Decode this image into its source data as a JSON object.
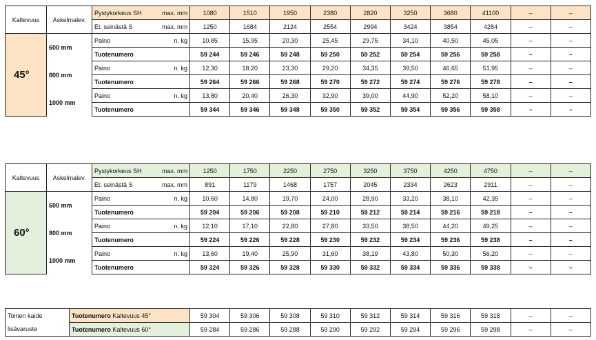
{
  "colors": {
    "orange": "#fce3c6",
    "green": "#e3f0dc"
  },
  "headers": {
    "slope": "Kaltevuus",
    "step_width": "Askelmalev.",
    "height": "Pystykorkeus SH",
    "distance": "Et. seinästä S",
    "max_unit": "max. mm",
    "weight": "Paino",
    "weight_unit": "n. kg",
    "product_number": "Tuotenumero"
  },
  "tables": [
    {
      "angle": "45°",
      "color": "orange",
      "height_values": [
        "1080",
        "1510",
        "1950",
        "2380",
        "2820",
        "3250",
        "3680",
        "41100",
        "–",
        "–"
      ],
      "distance_values": [
        "1250",
        "1684",
        "2124",
        "2554",
        "2994",
        "3424",
        "3854",
        "4284",
        "–",
        "–"
      ],
      "steps": [
        {
          "width": "600 mm",
          "weights": [
            "10,85",
            "15,95",
            "20,30",
            "25,45",
            "29,75",
            "34,10",
            "40,50",
            "45,05",
            "–",
            "–"
          ],
          "products": [
            "59 244",
            "59 246",
            "59 248",
            "59 250",
            "59 252",
            "59 254",
            "59 256",
            "59 258",
            "–",
            "–"
          ]
        },
        {
          "width": "800 mm",
          "weights": [
            "12,30",
            "18,20",
            "23,30",
            "29,20",
            "34,35",
            "39,50",
            "46,65",
            "51,95",
            "–",
            "–"
          ],
          "products": [
            "59 264",
            "59 266",
            "59 268",
            "59 270",
            "59 272",
            "59 274",
            "59 276",
            "59 278",
            "–",
            "–"
          ]
        },
        {
          "width": "1000 mm",
          "weights": [
            "13,80",
            "20,40",
            "26,30",
            "32,90",
            "39,00",
            "44,90",
            "52,20",
            "58,10",
            "–",
            "–"
          ],
          "products": [
            "59 344",
            "59 346",
            "59 348",
            "59 350",
            "59 352",
            "59 354",
            "59 356",
            "59 358",
            "–",
            "–"
          ]
        }
      ]
    },
    {
      "angle": "60°",
      "color": "green",
      "height_values": [
        "1250",
        "1750",
        "2250",
        "2750",
        "3250",
        "3750",
        "4250",
        "4750",
        "–",
        "–"
      ],
      "distance_values": [
        "891",
        "1179",
        "1468",
        "1757",
        "2045",
        "2334",
        "2623",
        "2911",
        "–",
        "–"
      ],
      "steps": [
        {
          "width": "600 mm",
          "weights": [
            "10,60",
            "14,80",
            "19,70",
            "24,00",
            "28,90",
            "33,20",
            "38,10",
            "42,35",
            "–",
            "–"
          ],
          "products": [
            "59 204",
            "59 206",
            "59 208",
            "59 210",
            "59 212",
            "59 214",
            "59 216",
            "59 218",
            "–",
            "–"
          ]
        },
        {
          "width": "800 mm",
          "weights": [
            "12,10",
            "17,10",
            "22,80",
            "27,80",
            "33,50",
            "38,50",
            "44,20",
            "49,25",
            "–",
            "–"
          ],
          "products": [
            "59 224",
            "59 226",
            "59 228",
            "59 230",
            "59 232",
            "59 234",
            "59 236",
            "59 238",
            "–",
            "–"
          ]
        },
        {
          "width": "1000 mm",
          "weights": [
            "13,60",
            "19,40",
            "25,90",
            "31,60",
            "38,19",
            "43,80",
            "50,30",
            "56,20",
            "–",
            "–"
          ],
          "products": [
            "59 324",
            "59 326",
            "59 328",
            "59 330",
            "59 332",
            "59 334",
            "59 336",
            "59 338",
            "–",
            "–"
          ]
        }
      ]
    }
  ],
  "accessory": {
    "row_labels": [
      "Toinen kaide",
      "lisävaruste"
    ],
    "rows": [
      {
        "bold": "Tuotenumero",
        "label": "Kaltevuus 45°",
        "color": "orange",
        "values": [
          "59 304",
          "59 306",
          "59 308",
          "59 310",
          "59 312",
          "59 314",
          "59 316",
          "59 318",
          "–",
          "–"
        ]
      },
      {
        "bold": "Tuotenumero",
        "label": "Kaltevuus 60°",
        "color": "green",
        "values": [
          "59 284",
          "59 286",
          "59 288",
          "59 290",
          "59 292",
          "59 294",
          "59 296",
          "59 298",
          "–",
          "–"
        ]
      }
    ]
  }
}
